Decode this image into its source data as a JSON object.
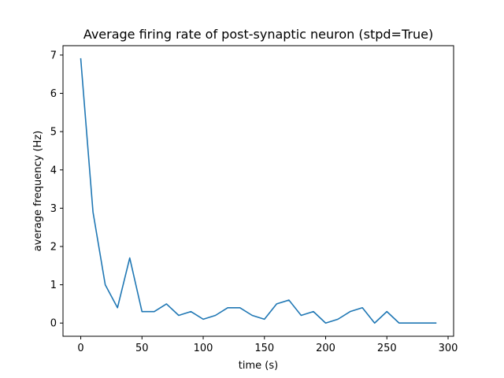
{
  "chart_data": {
    "type": "line",
    "title": "Average firing rate of post-synaptic neuron (stpd=True)",
    "xlabel": "time (s)",
    "ylabel": "average frequency (Hz)",
    "xlim": [
      -14.5,
      304.5
    ],
    "ylim": [
      -0.345,
      7.245
    ],
    "xticks": [
      0,
      50,
      100,
      150,
      200,
      250,
      300
    ],
    "yticks": [
      0,
      1,
      2,
      3,
      4,
      5,
      6,
      7
    ],
    "grid": false,
    "legend": "none",
    "series": [
      {
        "name": "average frequency",
        "color": "#1f77b4",
        "x": [
          0,
          10,
          20,
          30,
          40,
          50,
          60,
          70,
          80,
          90,
          100,
          110,
          120,
          130,
          140,
          150,
          160,
          170,
          180,
          190,
          200,
          210,
          220,
          230,
          240,
          250,
          260,
          270,
          280,
          290
        ],
        "y": [
          6.9,
          2.9,
          1.0,
          0.4,
          1.7,
          0.3,
          0.3,
          0.5,
          0.2,
          0.3,
          0.1,
          0.2,
          0.4,
          0.4,
          0.2,
          0.1,
          0.5,
          0.6,
          0.2,
          0.3,
          0.0,
          0.1,
          0.3,
          0.4,
          0.0,
          0.3,
          0.0,
          0.0,
          0.0,
          0.0
        ]
      }
    ]
  }
}
